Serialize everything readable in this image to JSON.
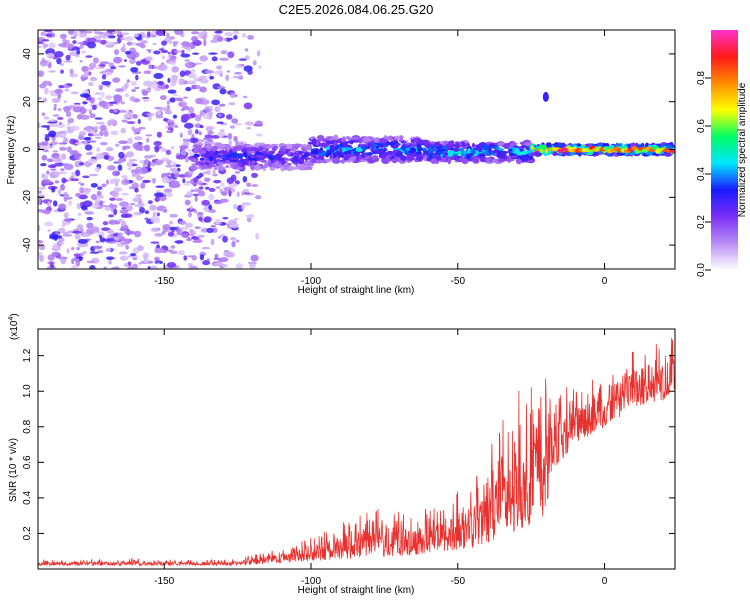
{
  "title": "C2E5.2026.084.06.25.G20",
  "colors": {
    "snr_line": "#e8312e",
    "spectrogram_low": "#7b2ff7",
    "spectrogram_mid": "#00e5ff",
    "spectrogram_high": "#ff1a1a",
    "axis": "#000000"
  },
  "chart_data": [
    {
      "type": "heatmap",
      "name": "spectrogram",
      "xlabel": "Height of straight line (km)",
      "ylabel": "Frequency (Hz)",
      "xlim": [
        -193,
        24
      ],
      "ylim": [
        -50,
        50
      ],
      "xticks": [
        -150,
        -100,
        -50,
        0
      ],
      "yticks": [
        -40,
        -20,
        0,
        20,
        40
      ],
      "xtick_labels": [
        "-150",
        "-100",
        "-50",
        "0"
      ],
      "ytick_labels": [
        "-40",
        "-20",
        "0",
        "20",
        "40"
      ],
      "colorbar": {
        "label": "Normalized spectral amplitude",
        "range": [
          0,
          1
        ],
        "ticks": [
          0.0,
          0.2,
          0.4,
          0.6,
          0.8
        ],
        "tick_labels": [
          "0.0",
          "0.2",
          "0.4",
          "0.6",
          "0.8"
        ],
        "stops": [
          "#ffffff",
          "#b98cf5",
          "#7b2ff7",
          "#1a1aff",
          "#00e5ff",
          "#00ff66",
          "#ffff00",
          "#ff8c00",
          "#ff1a1a",
          "#ff33cc"
        ]
      },
      "ridge": {
        "description_values": "Signal band centered near 0 Hz from -140 km to +24 km; diffuse noise below -120 km; isolated feature at about -20 km, 22 Hz",
        "segments": [
          {
            "x_start": -140,
            "x_end": -100,
            "center_hz": -3,
            "half_width_hz": 5,
            "amplitude": 0.35
          },
          {
            "x_start": -100,
            "x_end": -60,
            "center_hz": 0,
            "half_width_hz": 5,
            "amplitude": 0.45
          },
          {
            "x_start": -60,
            "x_end": -25,
            "center_hz": -1,
            "half_width_hz": 4,
            "amplitude": 0.5
          },
          {
            "x_start": -25,
            "x_end": 24,
            "center_hz": 0,
            "half_width_hz": 2,
            "amplitude": 0.85
          }
        ],
        "spot": {
          "x": -20,
          "y": 22,
          "amplitude": 0.3
        }
      }
    },
    {
      "type": "line",
      "name": "snr",
      "xlabel": "Height of straight line (km)",
      "ylabel": "SNR (10 * v/v)",
      "y_multiplier_label": "(x10",
      "y_multiplier_exp": "4",
      "y_multiplier_close": ")",
      "xlim": [
        -193,
        24
      ],
      "ylim": [
        0,
        1.35
      ],
      "xticks": [
        -150,
        -100,
        -50,
        0
      ],
      "yticks": [
        0.2,
        0.4,
        0.6,
        0.8,
        1.0,
        1.2
      ],
      "xtick_labels": [
        "-150",
        "-100",
        "-50",
        "0"
      ],
      "ytick_labels": [
        "0.2",
        "0.4",
        "0.6",
        "0.8",
        "1.0",
        "1.2"
      ],
      "envelope": {
        "x": [
          -193,
          -160,
          -140,
          -125,
          -115,
          -105,
          -95,
          -85,
          -75,
          -65,
          -55,
          -45,
          -40,
          -35,
          -30,
          -25,
          -20,
          -18,
          -10,
          0,
          10,
          20,
          24
        ],
        "low": [
          0.02,
          0.02,
          0.02,
          0.02,
          0.03,
          0.04,
          0.05,
          0.06,
          0.07,
          0.08,
          0.1,
          0.12,
          0.15,
          0.18,
          0.22,
          0.25,
          0.3,
          0.55,
          0.7,
          0.8,
          0.9,
          0.95,
          1.0
        ],
        "high": [
          0.05,
          0.06,
          0.05,
          0.06,
          0.1,
          0.14,
          0.22,
          0.3,
          0.35,
          0.32,
          0.38,
          0.5,
          0.65,
          0.85,
          1.0,
          1.05,
          1.1,
          1.0,
          1.05,
          1.15,
          1.25,
          1.35,
          1.3
        ]
      }
    }
  ]
}
